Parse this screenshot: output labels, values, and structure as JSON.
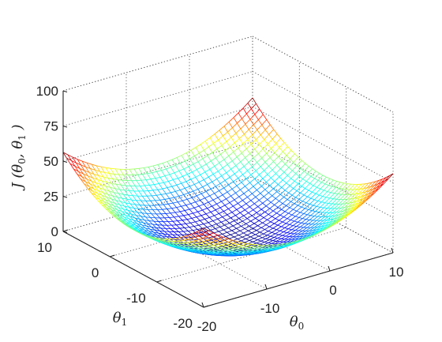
{
  "chart_data": {
    "type": "surface",
    "title": "",
    "function": "J(theta0, theta1) = 0.125 * (theta0 + 5)^2 + 0.125 * (theta1 + 5)^2",
    "xlabel": {
      "main": "θ",
      "sub": "0"
    },
    "ylabel": {
      "main": "θ",
      "sub": "1"
    },
    "zlabel": {
      "prefix": "J (θ",
      "sub0": "0",
      "mid": ", θ",
      "sub1": "1",
      "suffix": " )"
    },
    "xlim": [
      -20,
      10
    ],
    "ylim": [
      -20,
      10
    ],
    "zlim": [
      0,
      100
    ],
    "x_ticks": [
      "-20",
      "-10",
      "0",
      "10"
    ],
    "x_tick_values": [
      -20,
      -10,
      0,
      10
    ],
    "y_ticks": [
      "-20",
      "-10",
      "0",
      "10"
    ],
    "y_tick_values": [
      -20,
      -10,
      0,
      10
    ],
    "z_ticks": [
      "0",
      "25",
      "50",
      "75",
      "100"
    ],
    "z_tick_values": [
      0,
      25,
      50,
      75,
      100
    ],
    "grid": true,
    "grid_style": "dotted",
    "mesh_step": 0.75,
    "colormap": "jet",
    "color_range": [
      0,
      56
    ],
    "legend": "none"
  }
}
